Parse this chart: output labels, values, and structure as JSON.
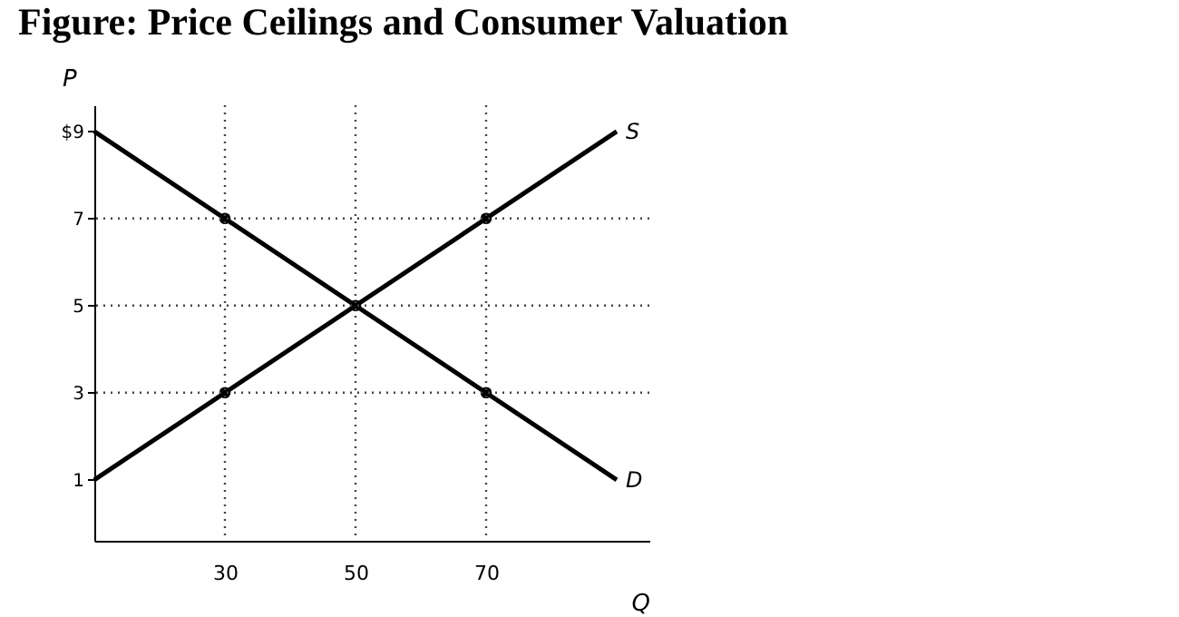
{
  "chart_data": {
    "type": "line",
    "title": "Figure: Price Ceilings and Consumer Valuation",
    "xlabel": "Q",
    "ylabel": "P",
    "series": [
      {
        "name": "S",
        "color": "#000000",
        "x": [
          10,
          90
        ],
        "values": [
          1,
          9
        ],
        "marker": "none"
      },
      {
        "name": "D",
        "color": "#000000",
        "x": [
          10,
          90
        ],
        "values": [
          9,
          1
        ],
        "marker": "none"
      },
      {
        "type": "scatter",
        "color": "#000000",
        "x": [
          30,
          70,
          50,
          30,
          70
        ],
        "values": [
          7,
          7,
          5,
          3,
          3
        ],
        "marker": "circle"
      }
    ],
    "xlim": [
      10,
      95
    ],
    "ylim": [
      -0.4,
      9.6
    ],
    "xticks": [
      30,
      50,
      70
    ],
    "yticks": [
      1,
      3,
      5,
      7,
      {
        "value": 9,
        "label": "$9"
      }
    ],
    "ref_lines": [
      {
        "axis": "y",
        "value": 7,
        "line_style": "dotted"
      },
      {
        "axis": "y",
        "value": 5,
        "line_style": "dotted"
      },
      {
        "axis": "y",
        "value": 3,
        "line_style": "dotted"
      },
      {
        "axis": "x",
        "value": 30,
        "line_style": "dotted"
      },
      {
        "axis": "x",
        "value": 50,
        "line_style": "dotted"
      },
      {
        "axis": "x",
        "value": 70,
        "line_style": "dotted"
      }
    ],
    "grid": false
  }
}
